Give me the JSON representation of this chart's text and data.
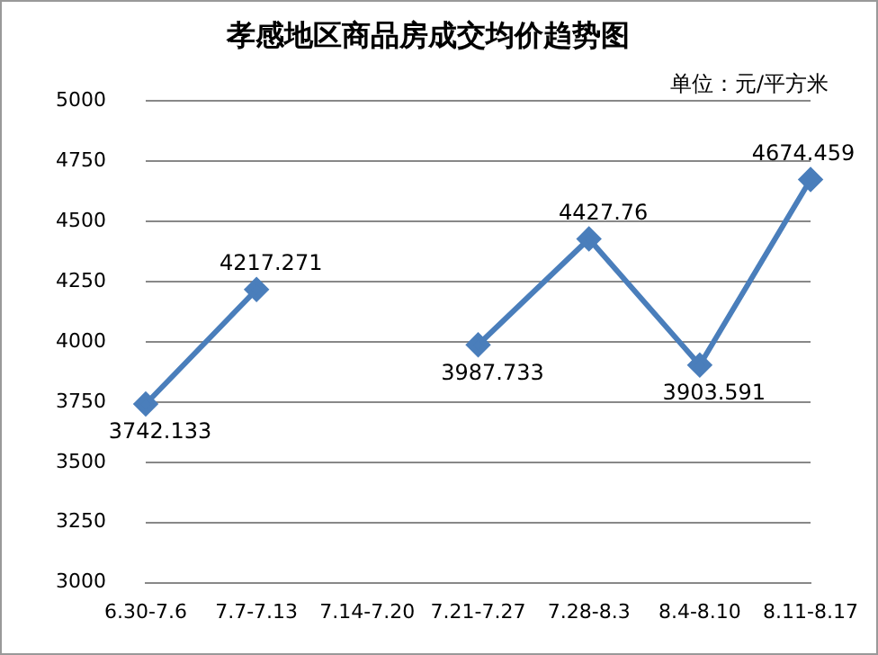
{
  "chart_data": {
    "type": "line",
    "title": "孝感地区商品房成交均价趋势图",
    "ylabel": "单位：元/平方米",
    "categories": [
      "6.30-7.6",
      "7.7-7.13",
      "7.14-7.20",
      "7.21-7.27",
      "7.28-8.3",
      "8.4-8.10",
      "8.11-8.17"
    ],
    "series": [
      {
        "color": "#4a7ebb",
        "values": [
          3742.133,
          4217.271,
          null,
          3987.733,
          4427.76,
          3903.591,
          4674.459
        ]
      }
    ],
    "ylim": [
      3000,
      5000
    ],
    "yticks": [
      3000,
      3250,
      3500,
      3750,
      4000,
      4250,
      4500,
      4750,
      5000
    ],
    "grid": "y",
    "legend": false,
    "marker": "diamond",
    "line_style": "solid",
    "data_labels": true
  }
}
